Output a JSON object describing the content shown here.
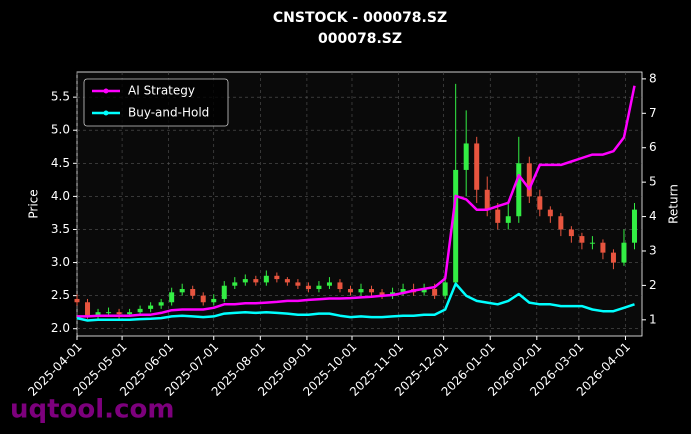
{
  "chart_data": {
    "type": "candlestick",
    "title": "CNSTOCK - 000078.SZ",
    "subtitle": "000078.SZ",
    "ylabel": "Price",
    "y2label": "Return",
    "watermark": "uqtool.com",
    "x": [
      "2025-04-01",
      "2025-04-08",
      "2025-04-15",
      "2025-04-22",
      "2025-04-29",
      "2025-05-06",
      "2025-05-13",
      "2025-05-20",
      "2025-05-27",
      "2025-06-03",
      "2025-06-10",
      "2025-06-17",
      "2025-06-24",
      "2025-07-01",
      "2025-07-08",
      "2025-07-15",
      "2025-07-22",
      "2025-07-29",
      "2025-08-05",
      "2025-08-12",
      "2025-08-19",
      "2025-08-26",
      "2025-09-02",
      "2025-09-09",
      "2025-09-16",
      "2025-09-23",
      "2025-09-30",
      "2025-10-07",
      "2025-10-14",
      "2025-10-21",
      "2025-10-28",
      "2025-11-04",
      "2025-11-11",
      "2025-11-18",
      "2025-11-25",
      "2025-12-02",
      "2025-12-09",
      "2025-12-16",
      "2025-12-23",
      "2025-12-30",
      "2026-01-06",
      "2026-01-13",
      "2026-01-20",
      "2026-01-27",
      "2026-02-03",
      "2026-02-10",
      "2026-02-17",
      "2026-02-24",
      "2026-03-03",
      "2026-03-10",
      "2026-03-17",
      "2026-03-24",
      "2026-03-31",
      "2026-04-07"
    ],
    "open": [
      2.45,
      2.4,
      2.2,
      2.25,
      2.25,
      2.22,
      2.25,
      2.3,
      2.35,
      2.4,
      2.55,
      2.6,
      2.5,
      2.4,
      2.45,
      2.65,
      2.7,
      2.75,
      2.7,
      2.8,
      2.75,
      2.7,
      2.65,
      2.6,
      2.65,
      2.7,
      2.6,
      2.55,
      2.6,
      2.55,
      2.5,
      2.55,
      2.6,
      2.55,
      2.6,
      2.5,
      2.7,
      4.4,
      4.8,
      4.1,
      3.8,
      3.6,
      3.7,
      4.5,
      4.0,
      3.8,
      3.7,
      3.5,
      3.4,
      3.3,
      3.3,
      3.15,
      3.0,
      3.3
    ],
    "high": [
      2.52,
      2.45,
      2.3,
      2.32,
      2.3,
      2.3,
      2.35,
      2.4,
      2.45,
      2.62,
      2.68,
      2.65,
      2.55,
      2.52,
      2.72,
      2.78,
      2.82,
      2.8,
      2.88,
      2.85,
      2.78,
      2.75,
      2.7,
      2.72,
      2.78,
      2.75,
      2.65,
      2.68,
      2.65,
      2.6,
      2.62,
      2.68,
      2.68,
      2.68,
      2.68,
      2.8,
      5.7,
      5.3,
      4.9,
      4.3,
      3.9,
      3.9,
      4.9,
      4.6,
      4.1,
      3.85,
      3.75,
      3.55,
      3.45,
      3.4,
      3.35,
      3.2,
      3.5,
      3.9
    ],
    "low": [
      2.35,
      2.15,
      2.15,
      2.18,
      2.15,
      2.18,
      2.2,
      2.25,
      2.3,
      2.35,
      2.5,
      2.45,
      2.35,
      2.35,
      2.4,
      2.6,
      2.65,
      2.65,
      2.65,
      2.7,
      2.65,
      2.6,
      2.55,
      2.55,
      2.6,
      2.55,
      2.5,
      2.5,
      2.5,
      2.45,
      2.45,
      2.5,
      2.5,
      2.5,
      2.45,
      2.45,
      2.65,
      4.0,
      3.9,
      3.7,
      3.5,
      3.5,
      3.6,
      3.9,
      3.7,
      3.6,
      3.4,
      3.3,
      3.2,
      3.2,
      3.05,
      2.9,
      2.95,
      3.2
    ],
    "close": [
      2.4,
      2.2,
      2.25,
      2.25,
      2.22,
      2.25,
      2.3,
      2.35,
      2.4,
      2.55,
      2.6,
      2.5,
      2.4,
      2.45,
      2.65,
      2.7,
      2.75,
      2.7,
      2.8,
      2.75,
      2.7,
      2.65,
      2.6,
      2.65,
      2.7,
      2.6,
      2.55,
      2.6,
      2.55,
      2.5,
      2.55,
      2.6,
      2.55,
      2.6,
      2.5,
      2.7,
      4.4,
      4.8,
      4.1,
      3.8,
      3.6,
      3.7,
      4.5,
      4.0,
      3.8,
      3.7,
      3.5,
      3.4,
      3.3,
      3.3,
      3.15,
      3.0,
      3.3,
      3.8
    ],
    "up_color": "#33ee44",
    "down_color": "#e8553f",
    "series": [
      {
        "name": "AI Strategy",
        "color": "#ff00ff",
        "axis": "y2",
        "values": [
          1.1,
          1.1,
          1.12,
          1.12,
          1.12,
          1.12,
          1.15,
          1.15,
          1.2,
          1.28,
          1.3,
          1.3,
          1.3,
          1.35,
          1.45,
          1.45,
          1.48,
          1.48,
          1.5,
          1.52,
          1.55,
          1.55,
          1.58,
          1.6,
          1.62,
          1.62,
          1.63,
          1.65,
          1.67,
          1.7,
          1.72,
          1.78,
          1.85,
          1.9,
          1.95,
          2.2,
          4.6,
          4.5,
          4.2,
          4.2,
          4.3,
          4.4,
          5.2,
          4.8,
          5.5,
          5.5,
          5.5,
          5.6,
          5.7,
          5.8,
          5.8,
          5.9,
          6.3,
          7.8
        ]
      },
      {
        "name": "Buy-and-Hold",
        "color": "#00ffff",
        "axis": "y2",
        "values": [
          1.05,
          0.98,
          1.0,
          1.0,
          1.0,
          1.0,
          1.02,
          1.03,
          1.05,
          1.1,
          1.12,
          1.1,
          1.08,
          1.1,
          1.18,
          1.2,
          1.22,
          1.2,
          1.22,
          1.2,
          1.18,
          1.15,
          1.15,
          1.18,
          1.18,
          1.12,
          1.08,
          1.1,
          1.08,
          1.08,
          1.1,
          1.12,
          1.12,
          1.15,
          1.15,
          1.3,
          2.05,
          1.7,
          1.55,
          1.5,
          1.45,
          1.55,
          1.75,
          1.5,
          1.45,
          1.45,
          1.4,
          1.4,
          1.4,
          1.3,
          1.25,
          1.25,
          1.35,
          1.45
        ]
      }
    ],
    "xlim": [
      "2025-04-01",
      "2026-04-12"
    ],
    "xticks": [
      "2025-04-01",
      "2025-05-01",
      "2025-06-01",
      "2025-07-01",
      "2025-08-01",
      "2025-09-01",
      "2025-10-01",
      "2025-11-01",
      "2025-12-01",
      "2026-01-01",
      "2026-02-01",
      "2026-03-01",
      "2026-04-01"
    ],
    "ylim": [
      1.89,
      5.88
    ],
    "yticks": [
      {
        "value": 2,
        "label": "2.0"
      },
      2.5,
      {
        "value": 3,
        "label": "3.0"
      },
      3.5,
      {
        "value": 4,
        "label": "4.0"
      },
      4.5,
      {
        "value": 5,
        "label": "5.0"
      },
      5.5
    ],
    "y2lim": [
      0.53,
      8.2
    ],
    "y2ticks": [
      1,
      2,
      3,
      4,
      5,
      6,
      7,
      8
    ],
    "grid": true,
    "legend": "upper left"
  }
}
